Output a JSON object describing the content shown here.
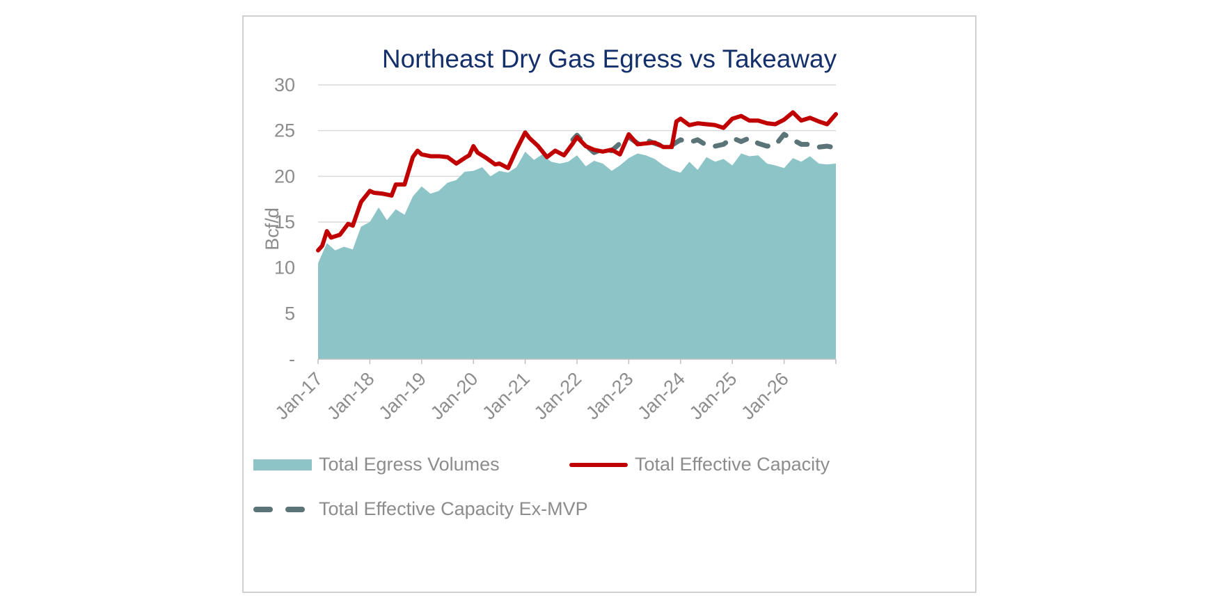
{
  "chart_data": {
    "type": "area",
    "title": "Northeast Dry Gas Egress vs Takeaway",
    "ylabel": "Bcf/d",
    "xlabel": "",
    "ylim": [
      0,
      30
    ],
    "yticks": [
      {
        "value": 0,
        "label": "-"
      },
      {
        "value": 5,
        "label": "5"
      },
      {
        "value": 10,
        "label": "10"
      },
      {
        "value": 15,
        "label": "15"
      },
      {
        "value": 20,
        "label": "20"
      },
      {
        "value": 25,
        "label": "25"
      },
      {
        "value": 30,
        "label": "30"
      }
    ],
    "xlim": [
      2017.0,
      2027.0
    ],
    "xticks": [
      {
        "value": 2017,
        "label": "Jan-17"
      },
      {
        "value": 2018,
        "label": "Jan-18"
      },
      {
        "value": 2019,
        "label": "Jan-19"
      },
      {
        "value": 2020,
        "label": "Jan-20"
      },
      {
        "value": 2021,
        "label": "Jan-21"
      },
      {
        "value": 2022,
        "label": "Jan-22"
      },
      {
        "value": 2023,
        "label": "Jan-23"
      },
      {
        "value": 2024,
        "label": "Jan-24"
      },
      {
        "value": 2025,
        "label": "Jan-25"
      },
      {
        "value": 2026,
        "label": "Jan-26"
      }
    ],
    "grid": true,
    "legend_position": "bottom",
    "series": [
      {
        "name": "Total Egress Volumes",
        "style": "area",
        "color": "#8dc4c7",
        "x": [
          2017.0,
          2017.17,
          2017.33,
          2017.5,
          2017.67,
          2017.83,
          2018.0,
          2018.17,
          2018.33,
          2018.5,
          2018.67,
          2018.83,
          2019.0,
          2019.17,
          2019.33,
          2019.5,
          2019.67,
          2019.83,
          2020.0,
          2020.17,
          2020.33,
          2020.5,
          2020.67,
          2020.83,
          2021.0,
          2021.17,
          2021.33,
          2021.5,
          2021.67,
          2021.83,
          2022.0,
          2022.17,
          2022.33,
          2022.5,
          2022.67,
          2022.83,
          2023.0,
          2023.17,
          2023.33,
          2023.5,
          2023.67,
          2023.83,
          2024.0,
          2024.17,
          2024.33,
          2024.5,
          2024.67,
          2024.83,
          2025.0,
          2025.17,
          2025.33,
          2025.5,
          2025.67,
          2025.83,
          2026.0,
          2026.17,
          2026.33,
          2026.5,
          2026.67,
          2026.83,
          2027.0
        ],
        "values": [
          10.5,
          12.7,
          11.9,
          12.3,
          12.0,
          14.5,
          15.0,
          16.6,
          15.2,
          16.4,
          15.8,
          17.8,
          18.9,
          18.1,
          18.4,
          19.3,
          19.6,
          20.5,
          20.6,
          21.0,
          20.0,
          20.6,
          20.4,
          21.0,
          22.7,
          21.8,
          22.4,
          21.6,
          21.4,
          21.6,
          22.3,
          21.1,
          21.7,
          21.4,
          20.6,
          21.2,
          22.0,
          22.5,
          22.3,
          21.9,
          21.2,
          20.7,
          20.4,
          21.6,
          20.7,
          22.1,
          21.6,
          21.9,
          21.2,
          22.5,
          22.2,
          22.3,
          21.4,
          21.2,
          20.9,
          22.0,
          21.6,
          22.2,
          21.4,
          21.3,
          21.4
        ]
      },
      {
        "name": "Total Effective Capacity",
        "style": "line",
        "color": "#c00000",
        "x": [
          2017.0,
          2017.08,
          2017.17,
          2017.25,
          2017.42,
          2017.58,
          2017.67,
          2017.83,
          2018.0,
          2018.08,
          2018.25,
          2018.42,
          2018.5,
          2018.67,
          2018.83,
          2018.92,
          2019.0,
          2019.17,
          2019.33,
          2019.5,
          2019.67,
          2019.83,
          2019.92,
          2020.0,
          2020.08,
          2020.25,
          2020.42,
          2020.5,
          2020.67,
          2020.83,
          2021.0,
          2021.08,
          2021.25,
          2021.42,
          2021.58,
          2021.75,
          2021.92,
          2022.0,
          2022.17,
          2022.33,
          2022.5,
          2022.67,
          2022.83,
          2023.0,
          2023.17,
          2023.33,
          2023.5,
          2023.67,
          2023.83,
          2023.92,
          2024.0,
          2024.17,
          2024.33,
          2024.5,
          2024.67,
          2024.83,
          2025.0,
          2025.17,
          2025.33,
          2025.5,
          2025.67,
          2025.83,
          2026.0,
          2026.17,
          2026.33,
          2026.5,
          2026.67,
          2026.83,
          2027.0
        ],
        "values": [
          11.9,
          12.4,
          14.0,
          13.3,
          13.6,
          14.8,
          14.6,
          17.2,
          18.4,
          18.2,
          18.1,
          17.9,
          19.1,
          19.1,
          22.1,
          22.8,
          22.4,
          22.2,
          22.2,
          22.1,
          21.4,
          22.0,
          22.3,
          23.3,
          22.6,
          22.0,
          21.3,
          21.4,
          20.9,
          22.9,
          24.8,
          24.2,
          23.3,
          22.1,
          22.8,
          22.3,
          23.6,
          24.3,
          23.3,
          22.9,
          22.7,
          22.9,
          22.4,
          24.6,
          23.5,
          23.6,
          23.7,
          23.2,
          23.2,
          26.0,
          26.3,
          25.6,
          25.8,
          25.7,
          25.6,
          25.3,
          26.3,
          26.6,
          26.1,
          26.1,
          25.8,
          25.7,
          26.2,
          27.0,
          26.1,
          26.4,
          26.0,
          25.7,
          26.8
        ]
      },
      {
        "name": "Total Effective Capacity Ex-MVP",
        "style": "dashed",
        "color": "#5b7478",
        "x": [
          2021.92,
          2022.0,
          2022.17,
          2022.33,
          2022.5,
          2022.67,
          2022.83,
          2023.0,
          2023.17,
          2023.33,
          2023.5,
          2023.67,
          2023.83,
          2024.0,
          2024.17,
          2024.33,
          2024.5,
          2024.67,
          2024.83,
          2025.0,
          2025.17,
          2025.33,
          2025.5,
          2025.67,
          2025.83,
          2026.0,
          2026.17,
          2026.33,
          2026.5,
          2026.67,
          2026.83,
          2027.0
        ],
        "values": [
          24.0,
          24.5,
          23.4,
          22.6,
          23.0,
          22.8,
          23.6,
          24.3,
          23.6,
          24.0,
          23.6,
          23.3,
          23.4,
          24.0,
          23.7,
          24.0,
          23.4,
          23.3,
          23.5,
          24.2,
          23.8,
          24.2,
          23.6,
          23.3,
          23.4,
          24.6,
          24.0,
          23.5,
          23.5,
          23.2,
          23.3,
          23.1
        ]
      }
    ]
  }
}
